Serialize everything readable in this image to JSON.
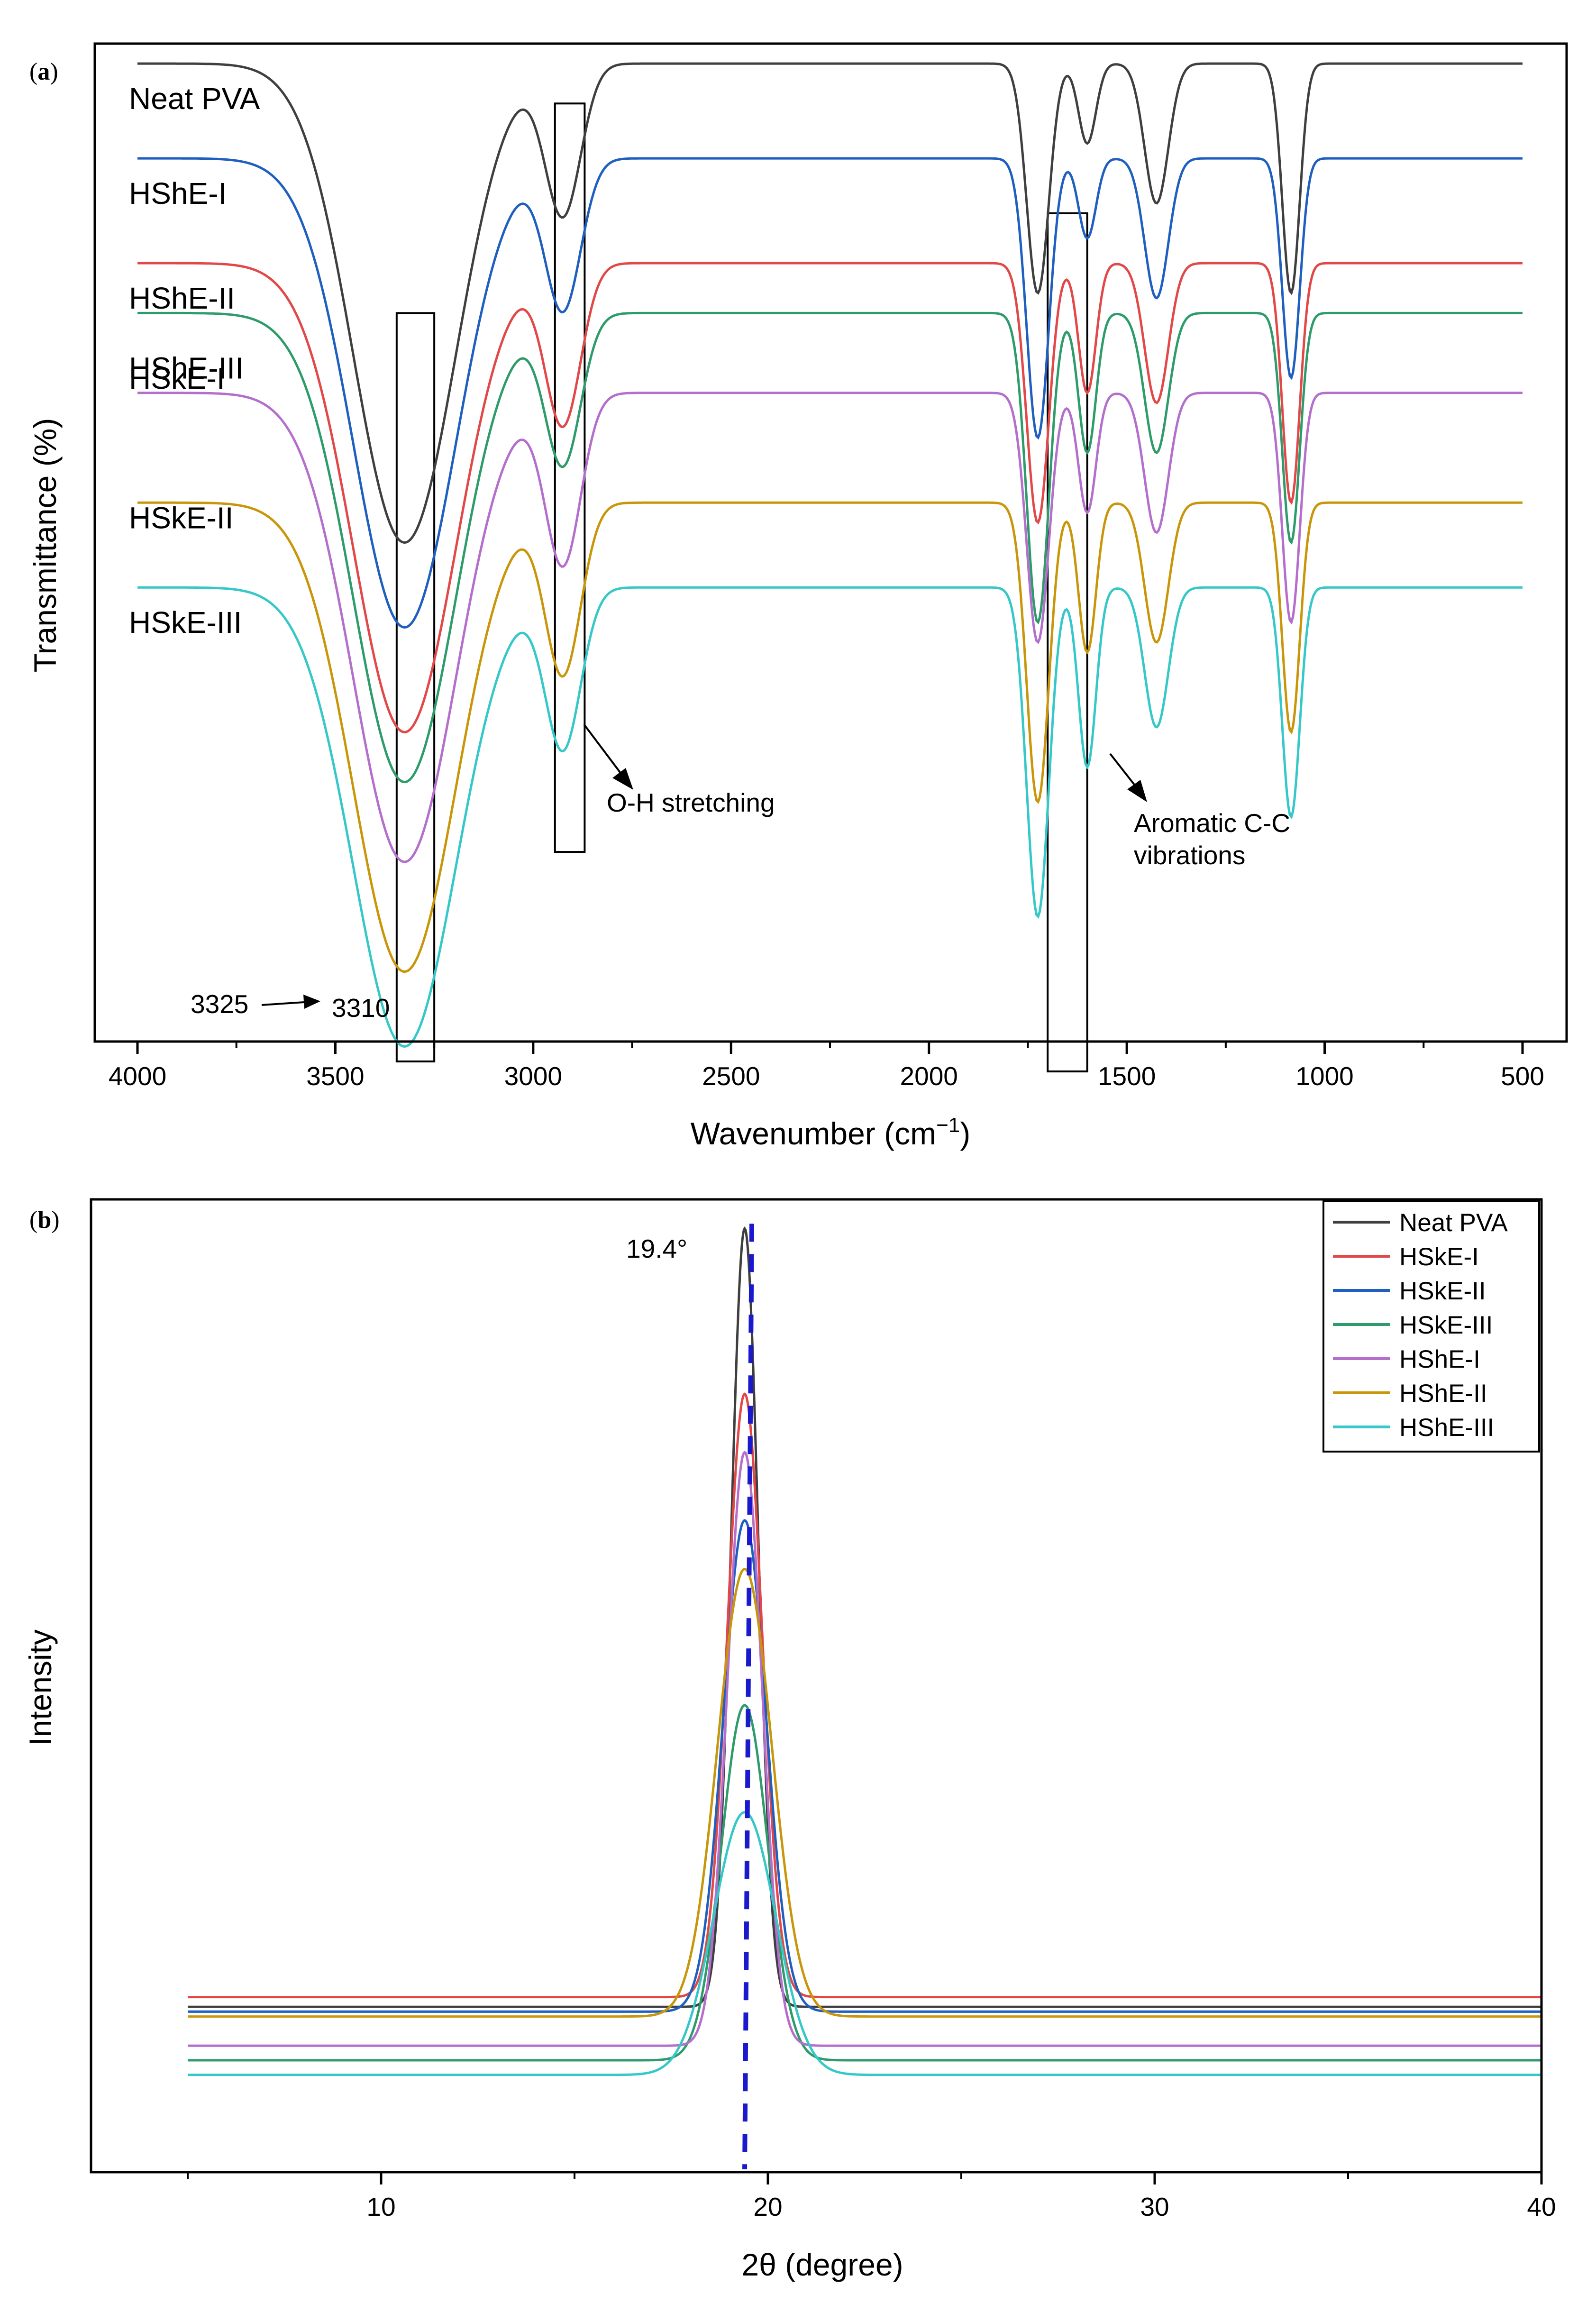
{
  "figure": {
    "panel_a_prefix": "(",
    "panel_a_letter": "a",
    "panel_a_suffix": ")",
    "panel_b_prefix": "(",
    "panel_b_letter": "b",
    "panel_b_suffix": ")"
  },
  "chart_data": [
    {
      "type": "line",
      "panel": "a",
      "title": "",
      "xlabel_main": "Wavenumber (cm",
      "xlabel_sup": "−1",
      "xlabel_close": ")",
      "ylabel": "Transmittance (%)",
      "xlim": [
        4000,
        500
      ],
      "x_reversed": true,
      "ylim": [
        0,
        100
      ],
      "grid": false,
      "x_ticks": [
        4000,
        3500,
        3000,
        2500,
        2000,
        1500,
        1000,
        500
      ],
      "bands": [
        {
          "center": 3325,
          "width": 130,
          "depth_scale": 1.0
        },
        {
          "center": 2925,
          "width": 45,
          "depth_scale": 0.27
        },
        {
          "center": 1725,
          "width": 28,
          "depth_scale": 0.38
        },
        {
          "center": 1600,
          "width": 22,
          "depth_scale": 0.3
        },
        {
          "center": 1425,
          "width": 30,
          "depth_scale": 0.22
        },
        {
          "center": 1085,
          "width": 22,
          "depth_scale": 0.37
        }
      ],
      "series": [
        {
          "name": "Neat PVA",
          "color": "#3f3f3f",
          "baseline": 98,
          "band_depths": [
            48,
            15,
            23,
            8,
            14,
            23
          ],
          "label_offset": 0
        },
        {
          "name": "HShE-I",
          "color": "#1f5fbf",
          "baseline": 88.5,
          "band_depths": [
            47,
            15,
            28,
            8,
            14,
            22
          ],
          "label_offset": 0
        },
        {
          "name": "HShE-II",
          "color": "#e24848",
          "baseline": 78,
          "band_depths": [
            47,
            16,
            26,
            13,
            14,
            24
          ],
          "label_offset": 0
        },
        {
          "name": "HShE-III",
          "color": "#2e9c6a",
          "baseline": 73,
          "band_depths": [
            47,
            15,
            31,
            14,
            14,
            23
          ],
          "label_offset": 2
        },
        {
          "name": "HSkE-I",
          "color": "#b46fcc",
          "baseline": 65,
          "band_depths": [
            47,
            17,
            25,
            12,
            14,
            23
          ],
          "label_offset": -5
        },
        {
          "name": "HSkE-II",
          "color": "#c9960a",
          "baseline": 54,
          "band_depths": [
            47,
            17,
            30,
            15,
            14,
            23
          ],
          "label_offset": -2
        },
        {
          "name": "HSkE-III",
          "color": "#36c8c8",
          "baseline": 45.5,
          "band_depths": [
            46,
            16,
            33,
            18,
            14,
            23
          ],
          "label_offset": 0
        }
      ],
      "annotations": {
        "oh_label": "O-H stretching",
        "aromatic_label_line1": "Aromatic C-C",
        "aromatic_label_line2": "vibrations",
        "shift_from": "3325",
        "shift_to": "3310"
      },
      "annotation_boxes": [
        {
          "x1": 3345,
          "x2": 3250,
          "y_top": 73,
          "y_bottom": -2
        },
        {
          "x1": 2945,
          "x2": 2870,
          "y_top": 94,
          "y_bottom": 19
        },
        {
          "x1": 1700,
          "x2": 1600,
          "y_top": 83,
          "y_bottom": -3
        }
      ]
    },
    {
      "type": "line",
      "panel": "b",
      "title": "",
      "xlabel": "2θ (degree)",
      "ylabel": "Intensity",
      "xlim": [
        2.5,
        40
      ],
      "ylim": [
        0,
        100
      ],
      "grid": false,
      "x_ticks": [
        10,
        20,
        30,
        40
      ],
      "peak_label": "19.4°",
      "peak_position": 19.4,
      "legend_position": "top-right",
      "series": [
        {
          "name": "Neat PVA",
          "color": "#3f3f3f",
          "baseline": 17,
          "peak_height": 97,
          "peak_width": 0.35
        },
        {
          "name": "HSkE-I",
          "color": "#e24848",
          "baseline": 18,
          "peak_height": 80,
          "peak_width": 0.45
        },
        {
          "name": "HSkE-II",
          "color": "#1f5fbf",
          "baseline": 16.5,
          "peak_height": 67,
          "peak_width": 0.55
        },
        {
          "name": "HSkE-III",
          "color": "#2e9c6a",
          "baseline": 11.5,
          "peak_height": 48,
          "peak_width": 0.6
        },
        {
          "name": "HShE-I",
          "color": "#b46fcc",
          "baseline": 13,
          "peak_height": 74,
          "peak_width": 0.45
        },
        {
          "name": "HShE-II",
          "color": "#c9960a",
          "baseline": 16,
          "peak_height": 62,
          "peak_width": 0.7
        },
        {
          "name": "HShE-III",
          "color": "#36c8c8",
          "baseline": 10,
          "peak_height": 37,
          "peak_width": 0.8
        }
      ]
    }
  ]
}
